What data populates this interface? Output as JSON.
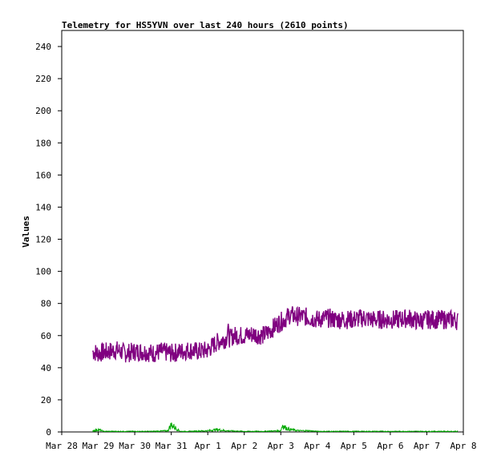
{
  "chart_data": {
    "type": "line",
    "title": "Telemetry for HS5YVN over last 240 hours (2610 points)",
    "xlabel": "",
    "ylabel": "Values",
    "ylim": [
      0,
      250
    ],
    "yticks": [
      0,
      20,
      40,
      60,
      80,
      100,
      120,
      140,
      160,
      180,
      200,
      220,
      240
    ],
    "xticks": [
      "Mar 28",
      "Mar 29",
      "Mar 30",
      "Mar 31",
      "Apr 1",
      "Apr 2",
      "Apr 3",
      "Apr 4",
      "Apr 5",
      "Apr 6",
      "Apr 7",
      "Apr 8"
    ],
    "x_unit": "days from Mar 28 00:00",
    "xlim": [
      0,
      11
    ],
    "grid": false,
    "series": [
      {
        "color": "#800080",
        "x": [
          0.85,
          1.0,
          1.25,
          1.5,
          1.75,
          2.0,
          2.25,
          2.5,
          2.75,
          3.0,
          3.25,
          3.5,
          3.75,
          4.0,
          4.2,
          4.35,
          4.5,
          4.55,
          4.6,
          4.65,
          4.7,
          4.8,
          5.0,
          5.25,
          5.5,
          5.65,
          5.8,
          5.95,
          6.1,
          6.25,
          6.4,
          6.6,
          6.8,
          7.0,
          7.25,
          7.5,
          7.75,
          8.0,
          8.25,
          8.5,
          8.75,
          9.0,
          9.25,
          9.5,
          9.75,
          10.0,
          10.25,
          10.5,
          10.75,
          10.85
        ],
        "values": [
          50,
          49,
          50,
          51,
          49,
          50,
          50,
          49,
          50,
          49,
          50,
          51,
          50,
          51,
          55,
          57,
          58,
          63,
          58,
          59,
          60,
          60,
          60,
          61,
          60,
          62,
          65,
          68,
          70,
          73,
          72,
          72,
          71,
          70,
          71,
          70,
          70,
          70,
          71,
          70,
          70,
          70,
          70,
          71,
          69,
          70,
          70,
          70,
          70,
          69
        ]
      },
      {
        "color": "#00aa00",
        "x": [
          0.85,
          1.0,
          1.15,
          1.5,
          2.0,
          2.5,
          2.9,
          3.0,
          3.25,
          3.5,
          4.0,
          4.25,
          4.5,
          5.0,
          5.5,
          6.0,
          6.05,
          6.1,
          6.25,
          6.5,
          6.75,
          7.0,
          7.5,
          8.0,
          8.5,
          9.0,
          9.5,
          10.0,
          10.5,
          10.85
        ],
        "values": [
          1,
          2,
          0.5,
          0.5,
          0.5,
          0.5,
          1,
          6,
          0.5,
          0.5,
          1,
          2,
          1,
          0.5,
          0.5,
          1,
          6,
          4,
          2,
          1,
          1,
          0.5,
          0.5,
          0.5,
          0.5,
          0.5,
          0.5,
          0.5,
          0.5,
          0.5
        ]
      }
    ]
  }
}
